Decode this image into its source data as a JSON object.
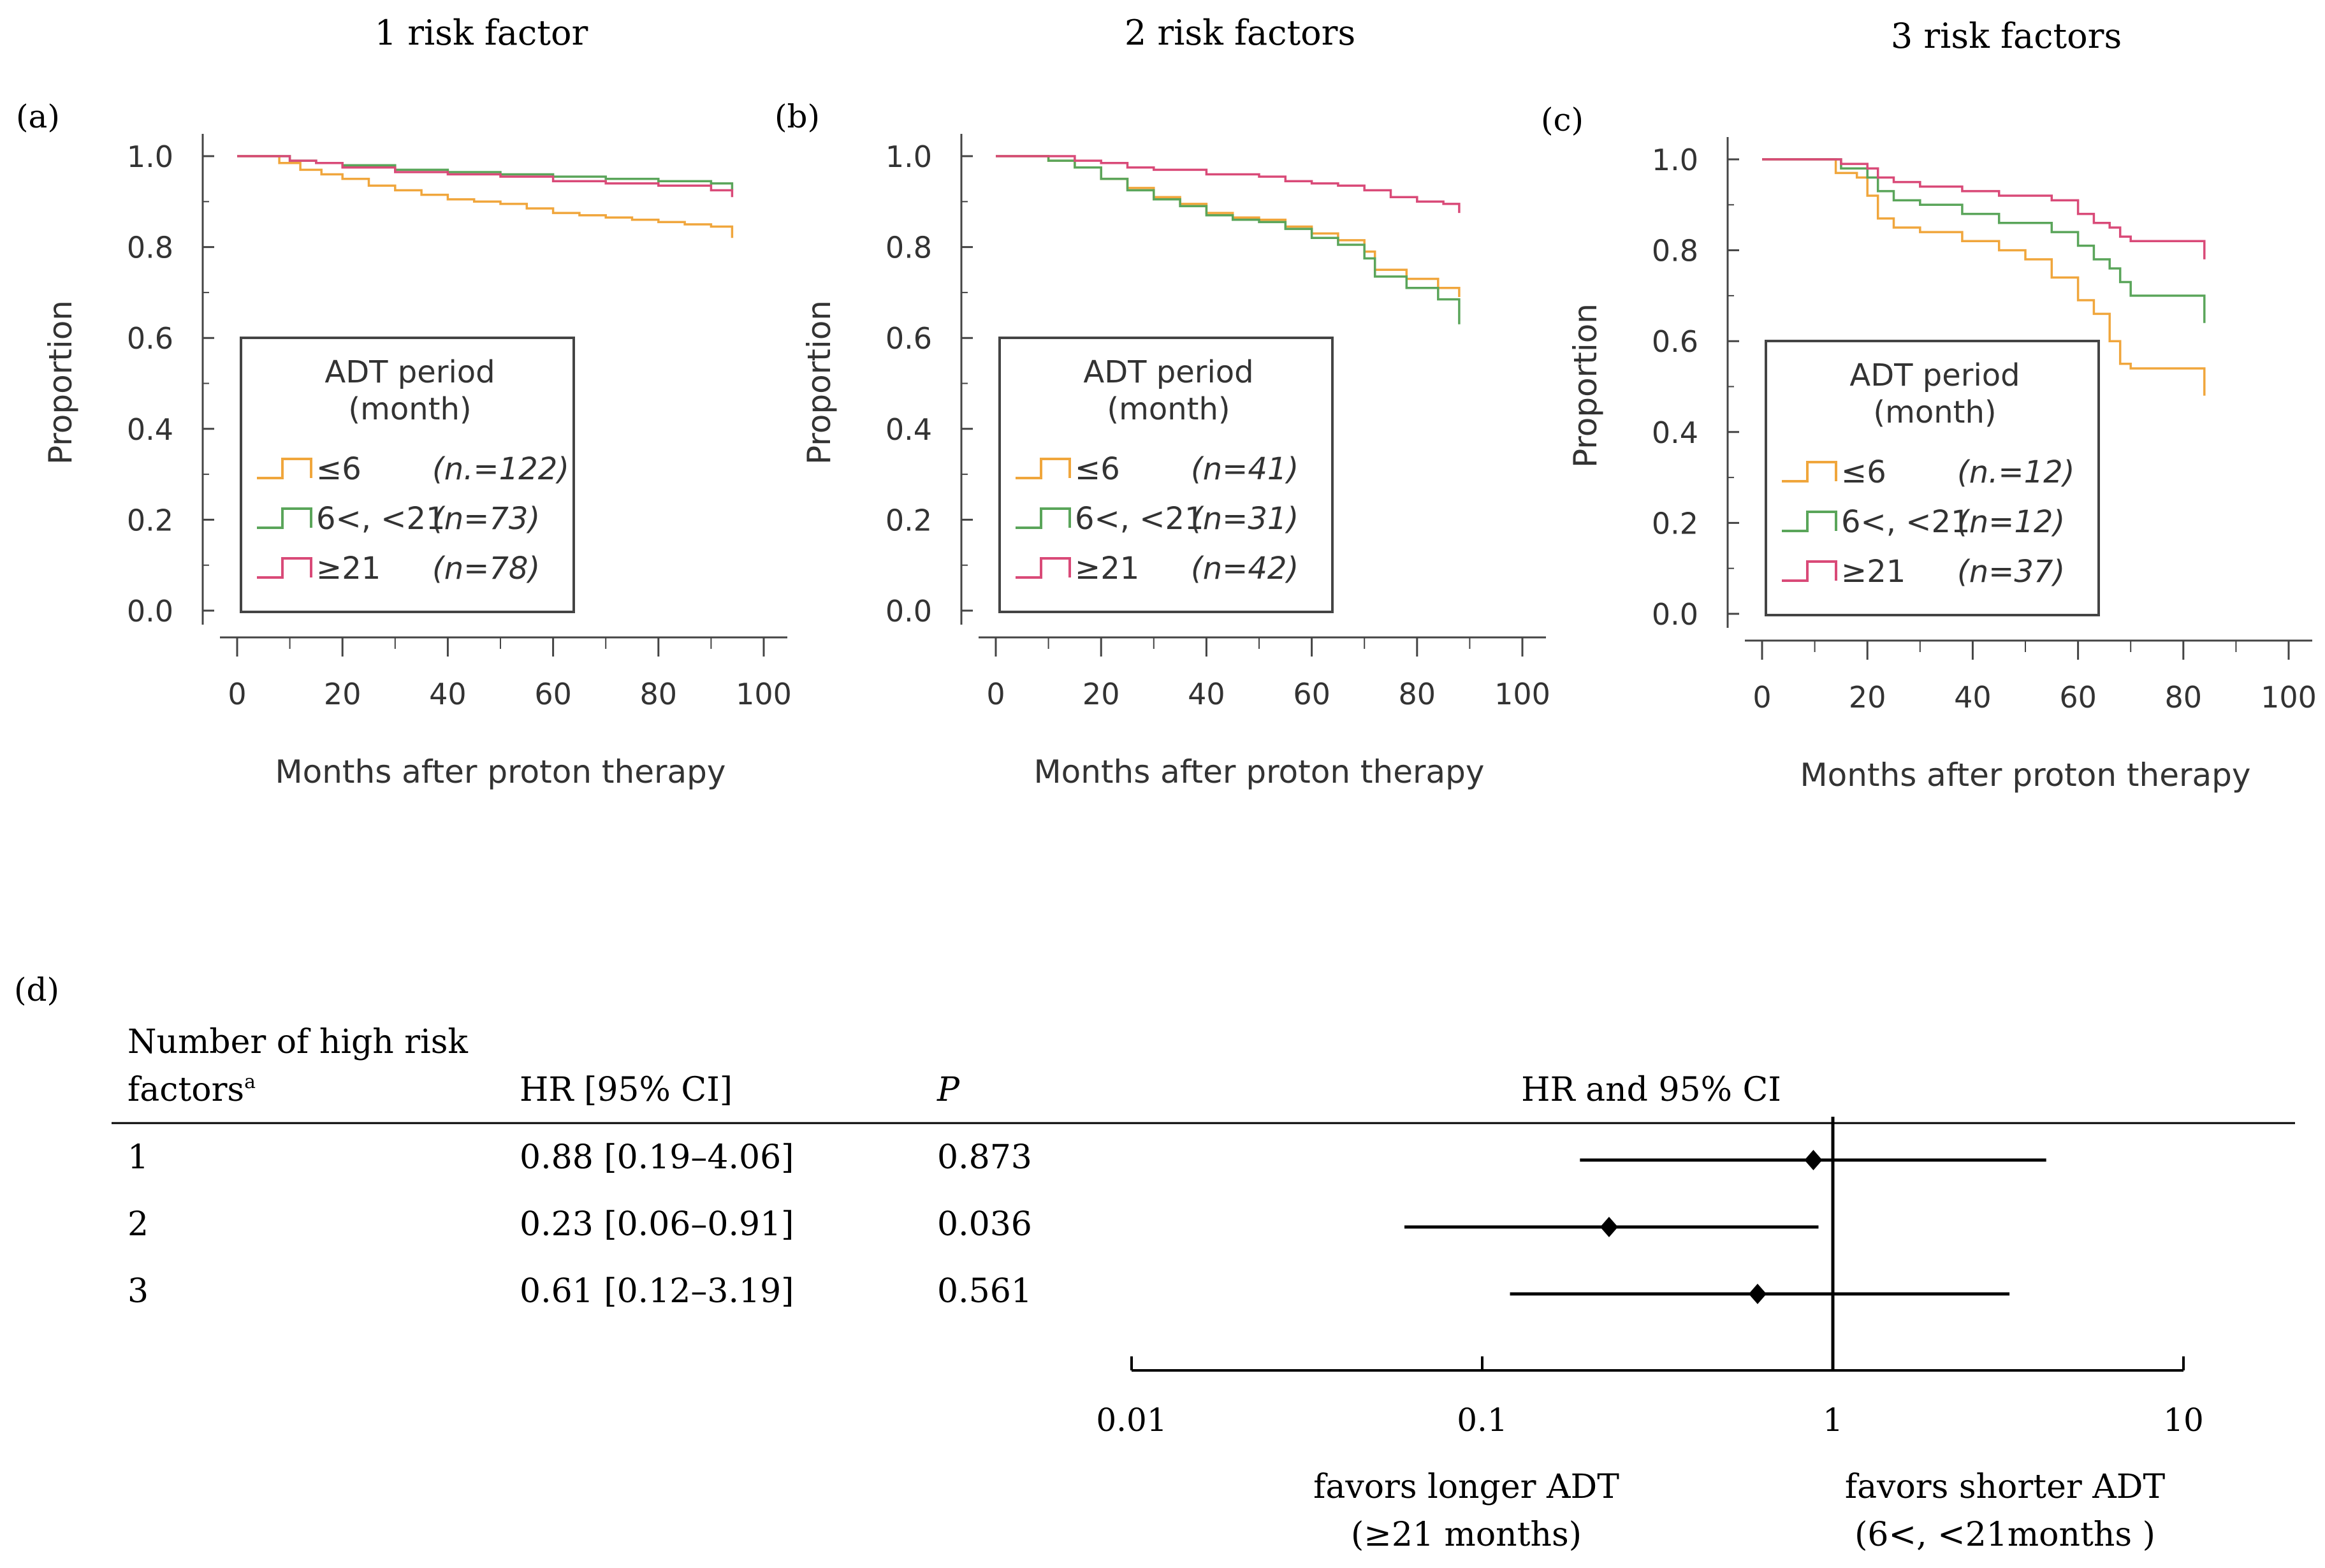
{
  "chart_data": [
    {
      "type": "line",
      "panel_label": "(a)",
      "title": "1 risk factor",
      "xlabel": "Months after proton therapy",
      "ylabel": "Proportion",
      "xlim": [
        0,
        100
      ],
      "ylim": [
        0,
        1
      ],
      "xticks": [
        "0",
        "20",
        "40",
        "60",
        "80",
        "100"
      ],
      "yticks": [
        "0.0",
        "0.2",
        "0.4",
        "0.6",
        "0.8",
        "1.0"
      ],
      "legend": {
        "title_line1": "ADT period",
        "title_line2": "(month)",
        "position": "lower-left"
      },
      "series": [
        {
          "name": "≤6",
          "n_label": "(n.=122)",
          "color": "#f0a63c",
          "points": [
            [
              0,
              1.0
            ],
            [
              4,
              1.0
            ],
            [
              8,
              0.985
            ],
            [
              12,
              0.97
            ],
            [
              16,
              0.96
            ],
            [
              20,
              0.95
            ],
            [
              25,
              0.935
            ],
            [
              30,
              0.925
            ],
            [
              35,
              0.915
            ],
            [
              40,
              0.905
            ],
            [
              45,
              0.9
            ],
            [
              50,
              0.895
            ],
            [
              55,
              0.885
            ],
            [
              60,
              0.875
            ],
            [
              65,
              0.87
            ],
            [
              70,
              0.865
            ],
            [
              75,
              0.86
            ],
            [
              80,
              0.855
            ],
            [
              85,
              0.85
            ],
            [
              90,
              0.845
            ],
            [
              94,
              0.84
            ],
            [
              94,
              0.82
            ]
          ]
        },
        {
          "name": "6<, <21",
          "n_label": "(n=73)",
          "color": "#5aa55a",
          "points": [
            [
              0,
              1.0
            ],
            [
              6,
              1.0
            ],
            [
              10,
              0.99
            ],
            [
              15,
              0.985
            ],
            [
              20,
              0.98
            ],
            [
              30,
              0.97
            ],
            [
              40,
              0.965
            ],
            [
              50,
              0.96
            ],
            [
              60,
              0.955
            ],
            [
              70,
              0.95
            ],
            [
              80,
              0.945
            ],
            [
              90,
              0.94
            ],
            [
              94,
              0.935
            ],
            [
              94,
              0.925
            ]
          ]
        },
        {
          "name": "≥21",
          "n_label": "(n=78)",
          "color": "#d94a78",
          "points": [
            [
              0,
              1.0
            ],
            [
              6,
              1.0
            ],
            [
              10,
              0.99
            ],
            [
              15,
              0.985
            ],
            [
              20,
              0.975
            ],
            [
              30,
              0.965
            ],
            [
              40,
              0.96
            ],
            [
              50,
              0.955
            ],
            [
              60,
              0.945
            ],
            [
              70,
              0.94
            ],
            [
              80,
              0.935
            ],
            [
              90,
              0.925
            ],
            [
              94,
              0.92
            ],
            [
              94,
              0.91
            ]
          ]
        }
      ]
    },
    {
      "type": "line",
      "panel_label": "(b)",
      "title": "2 risk factors",
      "xlabel": "Months after proton therapy",
      "ylabel": "Proportion",
      "xlim": [
        0,
        100
      ],
      "ylim": [
        0,
        1
      ],
      "xticks": [
        "0",
        "20",
        "40",
        "60",
        "80",
        "100"
      ],
      "yticks": [
        "0.0",
        "0.2",
        "0.4",
        "0.6",
        "0.8",
        "1.0"
      ],
      "legend": {
        "title_line1": "ADT period",
        "title_line2": "(month)",
        "position": "lower-left"
      },
      "series": [
        {
          "name": "≤6",
          "n_label": "(n=41)",
          "color": "#f0a63c",
          "points": [
            [
              0,
              1.0
            ],
            [
              8,
              1.0
            ],
            [
              10,
              0.99
            ],
            [
              15,
              0.975
            ],
            [
              20,
              0.95
            ],
            [
              25,
              0.93
            ],
            [
              30,
              0.91
            ],
            [
              35,
              0.895
            ],
            [
              40,
              0.875
            ],
            [
              45,
              0.865
            ],
            [
              50,
              0.86
            ],
            [
              55,
              0.845
            ],
            [
              60,
              0.83
            ],
            [
              65,
              0.815
            ],
            [
              70,
              0.79
            ],
            [
              72,
              0.75
            ],
            [
              78,
              0.73
            ],
            [
              84,
              0.71
            ],
            [
              88,
              0.7
            ],
            [
              88,
              0.69
            ]
          ]
        },
        {
          "name": "6<, <21",
          "n_label": "(n=31)",
          "color": "#5aa55a",
          "points": [
            [
              0,
              1.0
            ],
            [
              8,
              1.0
            ],
            [
              10,
              0.99
            ],
            [
              15,
              0.975
            ],
            [
              20,
              0.95
            ],
            [
              25,
              0.925
            ],
            [
              30,
              0.905
            ],
            [
              35,
              0.89
            ],
            [
              40,
              0.87
            ],
            [
              45,
              0.86
            ],
            [
              50,
              0.855
            ],
            [
              55,
              0.84
            ],
            [
              60,
              0.82
            ],
            [
              65,
              0.805
            ],
            [
              70,
              0.775
            ],
            [
              72,
              0.735
            ],
            [
              78,
              0.71
            ],
            [
              84,
              0.685
            ],
            [
              88,
              0.675
            ],
            [
              88,
              0.63
            ]
          ]
        },
        {
          "name": "≥21",
          "n_label": "(n=42)",
          "color": "#d94a78",
          "points": [
            [
              0,
              1.0
            ],
            [
              10,
              1.0
            ],
            [
              15,
              0.99
            ],
            [
              20,
              0.985
            ],
            [
              25,
              0.975
            ],
            [
              30,
              0.97
            ],
            [
              40,
              0.96
            ],
            [
              50,
              0.955
            ],
            [
              55,
              0.945
            ],
            [
              60,
              0.94
            ],
            [
              65,
              0.935
            ],
            [
              70,
              0.925
            ],
            [
              75,
              0.91
            ],
            [
              80,
              0.9
            ],
            [
              85,
              0.895
            ],
            [
              88,
              0.89
            ],
            [
              88,
              0.875
            ]
          ]
        }
      ]
    },
    {
      "type": "line",
      "panel_label": "(c)",
      "title": "3 risk factors",
      "xlabel": "Months after proton therapy",
      "ylabel": "Proportion",
      "xlim": [
        0,
        100
      ],
      "ylim": [
        0,
        1
      ],
      "xticks": [
        "0",
        "20",
        "40",
        "60",
        "80",
        "100"
      ],
      "yticks": [
        "0.0",
        "0.2",
        "0.4",
        "0.6",
        "0.8",
        "1.0"
      ],
      "legend": {
        "title_line1": "ADT period",
        "title_line2": "(month)",
        "position": "lower-left"
      },
      "series": [
        {
          "name": "≤6",
          "n_label": "(n.=12)",
          "color": "#f0a63c",
          "points": [
            [
              0,
              1.0
            ],
            [
              12,
              1.0
            ],
            [
              14,
              0.97
            ],
            [
              18,
              0.96
            ],
            [
              20,
              0.92
            ],
            [
              22,
              0.87
            ],
            [
              25,
              0.85
            ],
            [
              30,
              0.84
            ],
            [
              38,
              0.82
            ],
            [
              45,
              0.8
            ],
            [
              50,
              0.78
            ],
            [
              55,
              0.74
            ],
            [
              60,
              0.69
            ],
            [
              63,
              0.66
            ],
            [
              66,
              0.6
            ],
            [
              68,
              0.55
            ],
            [
              70,
              0.54
            ],
            [
              77,
              0.54
            ],
            [
              84,
              0.54
            ],
            [
              84,
              0.48
            ]
          ]
        },
        {
          "name": "6<, <21",
          "n_label": "(n=12)",
          "color": "#5aa55a",
          "points": [
            [
              0,
              1.0
            ],
            [
              12,
              1.0
            ],
            [
              15,
              0.98
            ],
            [
              20,
              0.96
            ],
            [
              22,
              0.93
            ],
            [
              25,
              0.91
            ],
            [
              30,
              0.9
            ],
            [
              38,
              0.88
            ],
            [
              45,
              0.86
            ],
            [
              55,
              0.84
            ],
            [
              60,
              0.81
            ],
            [
              63,
              0.78
            ],
            [
              66,
              0.76
            ],
            [
              68,
              0.73
            ],
            [
              70,
              0.7
            ],
            [
              77,
              0.7
            ],
            [
              84,
              0.7
            ],
            [
              84,
              0.64
            ]
          ]
        },
        {
          "name": "≥21",
          "n_label": "(n=37)",
          "color": "#d94a78",
          "points": [
            [
              0,
              1.0
            ],
            [
              12,
              1.0
            ],
            [
              15,
              0.99
            ],
            [
              20,
              0.98
            ],
            [
              22,
              0.96
            ],
            [
              25,
              0.95
            ],
            [
              30,
              0.94
            ],
            [
              38,
              0.93
            ],
            [
              45,
              0.92
            ],
            [
              55,
              0.91
            ],
            [
              60,
              0.88
            ],
            [
              63,
              0.86
            ],
            [
              66,
              0.85
            ],
            [
              68,
              0.83
            ],
            [
              70,
              0.82
            ],
            [
              77,
              0.82
            ],
            [
              84,
              0.82
            ],
            [
              84,
              0.78
            ]
          ]
        }
      ]
    },
    {
      "type": "forest",
      "panel_label": "(d)",
      "headers": {
        "factors_line1": "Number of high risk",
        "factors_line2": "factors",
        "factors_sup": "a",
        "hr": "HR [95% CI]",
        "p": "P",
        "plot": "HR and 95% CI"
      },
      "rows": [
        {
          "factors": "1",
          "hr_text": "0.88 [0.19–4.06]",
          "p": "0.873",
          "hr": 0.88,
          "lo": 0.19,
          "hi": 4.06
        },
        {
          "factors": "2",
          "hr_text": "0.23 [0.06–0.91]",
          "p": "0.036",
          "hr": 0.23,
          "lo": 0.06,
          "hi": 0.91
        },
        {
          "factors": "3",
          "hr_text": "0.61 [0.12–3.19]",
          "p": "0.561",
          "hr": 0.61,
          "lo": 0.12,
          "hi": 3.19
        }
      ],
      "xscale": "log",
      "xlim": [
        0.01,
        10
      ],
      "xticks": [
        {
          "value": 0.01,
          "label": "0.01"
        },
        {
          "value": 0.1,
          "label": "0.1"
        },
        {
          "value": 1,
          "label": "1"
        },
        {
          "value": 10,
          "label": "10"
        }
      ],
      "reference_line": 1,
      "left_note_line1": "favors longer ADT",
      "left_note_line2": "(≥21 months)",
      "right_note_line1": "favors shorter ADT",
      "right_note_line2": "(6<,  <21months )"
    }
  ]
}
